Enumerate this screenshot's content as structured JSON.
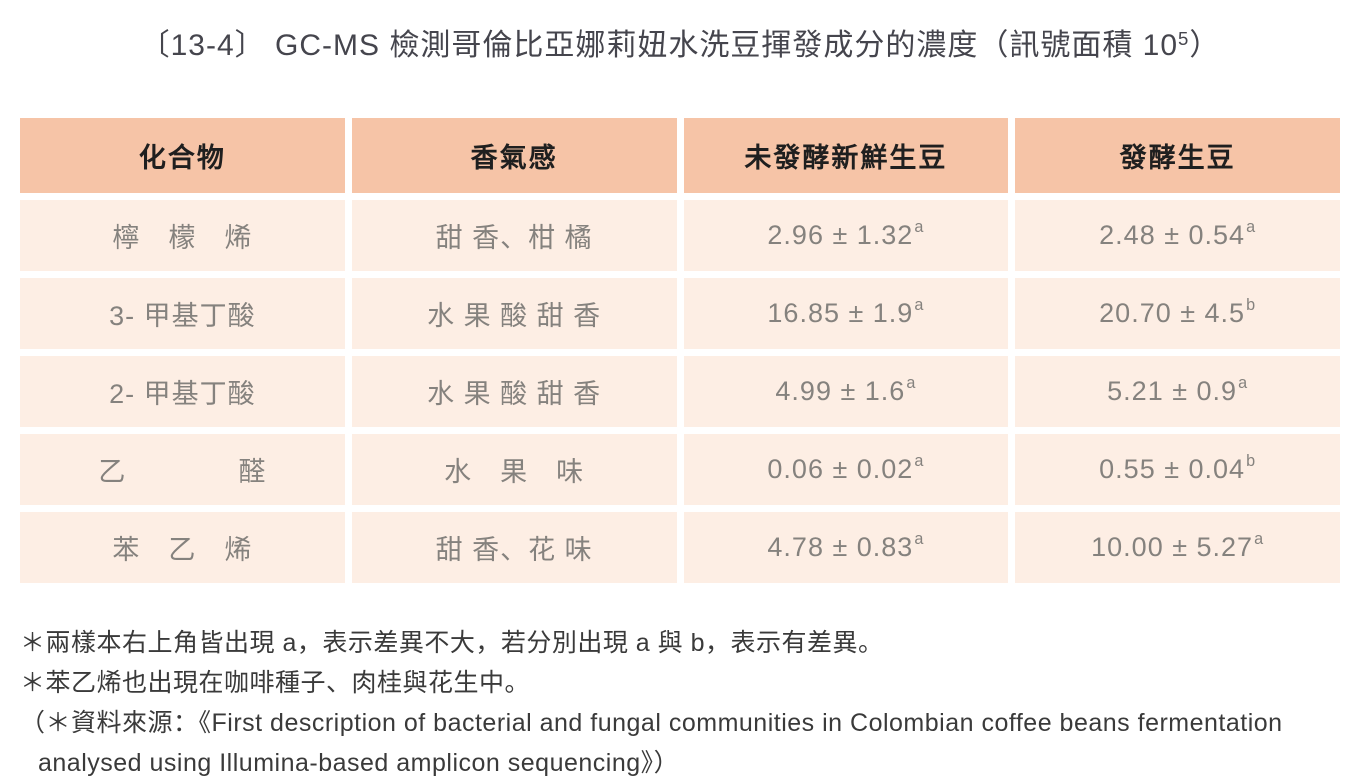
{
  "title": {
    "prefix": "〔13-4〕 GC-MS 檢測哥倫比亞娜莉妞水洗豆揮發成分的濃度（訊號面積 10",
    "sup": "5",
    "suffix": "）"
  },
  "table": {
    "headers": [
      "化合物",
      "香氣感",
      "未發酵新鮮生豆",
      "發酵生豆"
    ],
    "rows": [
      {
        "compound": "檸　檬　烯",
        "aroma": "甜 香、柑 橘",
        "fresh": {
          "value": "2.96 ± 1.32",
          "sup": "a"
        },
        "fermented": {
          "value": "2.48 ± 0.54",
          "sup": "a"
        }
      },
      {
        "compound": "3- 甲基丁酸",
        "aroma": "水 果 酸 甜 香",
        "fresh": {
          "value": "16.85 ± 1.9",
          "sup": "a"
        },
        "fermented": {
          "value": "20.70 ± 4.5",
          "sup": "b"
        }
      },
      {
        "compound": "2- 甲基丁酸",
        "aroma": "水 果 酸 甜 香",
        "fresh": {
          "value": "4.99 ± 1.6",
          "sup": "a"
        },
        "fermented": {
          "value": "5.21 ± 0.9",
          "sup": "a"
        }
      },
      {
        "compound": "乙　　　　醛",
        "aroma": "水　果　味",
        "fresh": {
          "value": "0.06 ± 0.02",
          "sup": "a"
        },
        "fermented": {
          "value": "0.55 ± 0.04",
          "sup": "b"
        }
      },
      {
        "compound": "苯　乙　烯",
        "aroma": "甜 香、花 味",
        "fresh": {
          "value": "4.78 ± 0.83",
          "sup": "a"
        },
        "fermented": {
          "value": "10.00 ± 5.27",
          "sup": "a"
        }
      }
    ]
  },
  "notes": [
    "＊兩樣本右上角皆出現 a，表示差異不大，若分別出現 a 與 b，表示有差異。",
    "＊苯乙烯也出現在咖啡種子、肉桂與花生中。",
    "（＊資料來源：《First description of bacterial and fungal communities in Colombian coffee beans fermentation",
    "analysed using Illumina-based amplicon sequencing》）"
  ],
  "colors": {
    "header_bg": "#f6c4a7",
    "row_bg": "#fdeee4",
    "header_text": "#1f1f1f",
    "body_text": "#85827e",
    "title_text": "#45454d",
    "note_text": "#3a3a3a"
  }
}
